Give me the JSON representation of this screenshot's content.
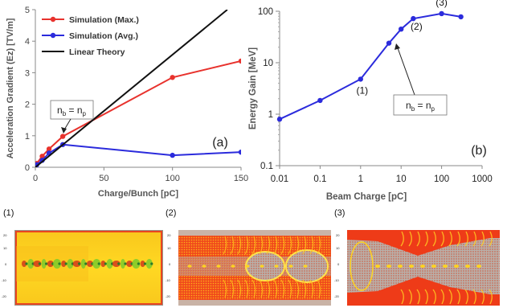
{
  "chart_data": [
    {
      "panel_label": "(a)",
      "type": "line",
      "xlabel": "Charge/Bunch [pC]",
      "ylabel": "Acceleration Gradient (Ez) [TV/m]",
      "xlim": [
        0,
        150
      ],
      "ylim": [
        0,
        5
      ],
      "xticks": [
        "0",
        "50",
        "100",
        "150"
      ],
      "yticks": [
        "0",
        "1",
        "2",
        "3",
        "4",
        "5"
      ],
      "legend_position": "top-left",
      "series": [
        {
          "name": "Simulation (Max.)",
          "color": "#e8322d",
          "marker": "circle",
          "x": [
            0.1,
            1,
            5,
            10,
            20,
            100,
            150
          ],
          "y": [
            0.05,
            0.12,
            0.35,
            0.58,
            0.98,
            2.85,
            3.37
          ]
        },
        {
          "name": "Simulation (Avg.)",
          "color": "#2b2bdc",
          "marker": "circle",
          "x": [
            0.1,
            1,
            5,
            10,
            20,
            100,
            150
          ],
          "y": [
            0.02,
            0.08,
            0.22,
            0.45,
            0.72,
            0.38,
            0.48
          ]
        },
        {
          "name": "Linear Theory",
          "color": "#111111",
          "marker": "none",
          "x": [
            0,
            140
          ],
          "y": [
            0,
            5
          ]
        }
      ],
      "annotation": {
        "text": "n_b = n_p",
        "x": 20,
        "y": 1.0
      }
    },
    {
      "panel_label": "(b)",
      "type": "line",
      "xscale": "log",
      "yscale": "log",
      "xlabel": "Beam Charge [pC]",
      "ylabel": "Energy Gain [MeV]",
      "xlim": [
        0.01,
        1000
      ],
      "ylim": [
        0.1,
        100
      ],
      "xticks": [
        "0.01",
        "0.1",
        "1",
        "10",
        "100",
        "1000"
      ],
      "yticks": [
        "0.1",
        "1",
        "10",
        "100"
      ],
      "series": [
        {
          "name": "",
          "color": "#2b2bdc",
          "marker": "circle",
          "x": [
            0.01,
            0.1,
            1,
            5,
            10,
            20,
            100,
            300
          ],
          "y": [
            0.8,
            1.85,
            4.8,
            24,
            45,
            72,
            90,
            78
          ]
        }
      ],
      "point_labels": [
        {
          "text": "(1)",
          "x": 1,
          "y": 4.8
        },
        {
          "text": "(2)",
          "x": 20,
          "y": 72
        },
        {
          "text": "(3)",
          "x": 100,
          "y": 90
        }
      ],
      "annotation": {
        "text": "n_b = n_p",
        "x": 5,
        "y": 24
      }
    }
  ],
  "snapshots": [
    {
      "label": "(1)",
      "theme": "yellow"
    },
    {
      "label": "(2)",
      "theme": "red"
    },
    {
      "label": "(3)",
      "theme": "gray"
    }
  ]
}
